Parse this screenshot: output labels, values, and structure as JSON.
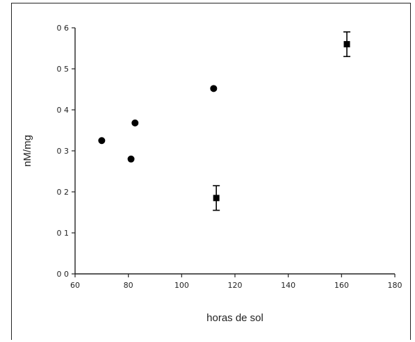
{
  "chart_data": {
    "type": "scatter",
    "title": "",
    "xlabel": "horas de sol",
    "ylabel": "nM/mg",
    "xlim": [
      60,
      180
    ],
    "ylim": [
      0,
      0.6
    ],
    "x_ticks": [
      "60",
      "80",
      "100",
      "120",
      "140",
      "160",
      "180"
    ],
    "y_ticks": [
      "0 0",
      "0 1",
      "0 2",
      "0 3",
      "0 4",
      "0 5",
      "0 6"
    ],
    "grid": false,
    "legend": "none",
    "points": [
      {
        "x": 70,
        "y": 0.325,
        "err": null,
        "marker": "circle"
      },
      {
        "x": 81,
        "y": 0.28,
        "err": null,
        "marker": "circle"
      },
      {
        "x": 82.5,
        "y": 0.368,
        "err": null,
        "marker": "circle"
      },
      {
        "x": 112,
        "y": 0.452,
        "err": null,
        "marker": "circle"
      },
      {
        "x": 113,
        "y": 0.185,
        "err": 0.03,
        "marker": "square"
      },
      {
        "x": 162,
        "y": 0.56,
        "err": 0.03,
        "marker": "square"
      }
    ],
    "colors": {
      "marker": "#000000",
      "axis": "#222222"
    }
  }
}
